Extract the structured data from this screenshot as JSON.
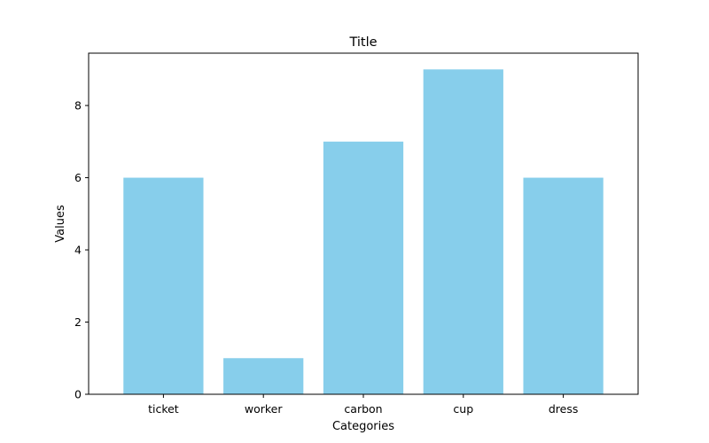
{
  "chart_data": {
    "type": "bar",
    "title": "Title",
    "xlabel": "Categories",
    "ylabel": "Values",
    "categories": [
      "ticket",
      "worker",
      "carbon",
      "cup",
      "dress"
    ],
    "values": [
      6,
      1,
      7,
      9,
      6
    ],
    "ylim": [
      0,
      9.45
    ],
    "yticks": [
      0,
      2,
      4,
      6,
      8
    ],
    "bar_color": "#87ceeb",
    "grid": false
  }
}
